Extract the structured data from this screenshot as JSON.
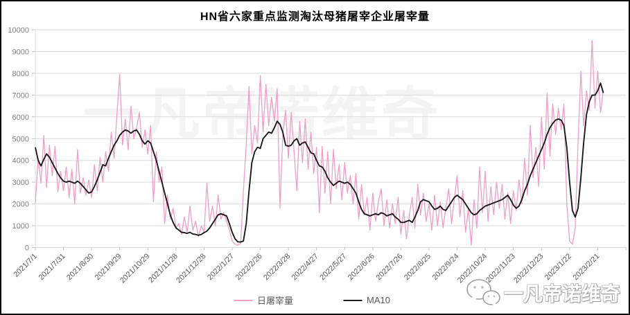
{
  "title": "HN省六家重点监测淘汰母猪屠宰企业屠宰量",
  "watermark_center_text": "一凡帝诺维奇",
  "watermark_bottom_right_text": "一凡帝诺维奇",
  "colors": {
    "daily_series": "#f09ec6",
    "ma10_series": "#1a1a1a",
    "gridline": "#d9d9d9",
    "axis_line": "#c0c0c0",
    "x_label": "#595959",
    "y_label": "#7f7f7f"
  },
  "chart_data": {
    "type": "line",
    "title": "HN省六家重点监测淘汰母猪屠宰企业屠宰量",
    "xlabel": "",
    "ylabel": "",
    "grid": "horizontal",
    "legend_position": "bottom-center",
    "x_axis": {
      "start_date": "2021/7/1",
      "end_date": "2023/2/21",
      "tick_interval_days": 30,
      "tick_labels": [
        "2021/7/1",
        "2021/7/31",
        "2021/8/30",
        "2021/9/29",
        "2021/10/29",
        "2021/11/28",
        "2021/12/28",
        "2022/1/27",
        "2022/2/26",
        "2022/3/28",
        "2022/4/27",
        "2022/5/27",
        "2022/6/26",
        "2022/7/26",
        "2022/8/25",
        "2022/9/24",
        "2022/10/24",
        "2022/11/23",
        "2022/12/23",
        "2023/1/22",
        "2023/2/21"
      ]
    },
    "y_axis": {
      "min": 0,
      "max": 10000,
      "tick_step": 1000,
      "ticks": [
        0,
        1000,
        2000,
        3000,
        4000,
        5000,
        6000,
        7000,
        8000,
        9000,
        10000
      ]
    },
    "sample_start_day": 0,
    "sample_step_days": 3,
    "series": [
      {
        "name": "日屠宰量",
        "color": "#f09ec6",
        "values": [
          2050,
          4100,
          2950,
          5150,
          2750,
          4700,
          3300,
          4650,
          2550,
          3500,
          2600,
          3700,
          2300,
          3600,
          2000,
          4500,
          2500,
          3200,
          2400,
          3100,
          2300,
          3800,
          2600,
          4150,
          3000,
          4400,
          3500,
          5300,
          4100,
          6100,
          7950,
          4700,
          5900,
          4500,
          6500,
          5000,
          5500,
          6200,
          4600,
          5400,
          4300,
          5600,
          2100,
          4400,
          3000,
          3700,
          1100,
          2400,
          1300,
          1800,
          900,
          1100,
          600,
          1400,
          700,
          1900,
          800,
          1200,
          500,
          1000,
          700,
          2950,
          1200,
          1900,
          1000,
          2400,
          1300,
          1600,
          1200,
          800,
          300,
          150,
          100,
          200,
          2600,
          4750,
          7400,
          4300,
          5600,
          4800,
          7900,
          5300,
          7500,
          5600,
          6900,
          5800,
          7300,
          1800,
          5200,
          6300,
          4100,
          6200,
          4400,
          2600,
          5800,
          3900,
          5900,
          3600,
          5300,
          3400,
          4600,
          1600,
          4650,
          2500,
          4400,
          2000,
          4500,
          2700,
          3800,
          2200,
          3900,
          2500,
          3300,
          2000,
          3400,
          1300,
          2900,
          1500,
          2300,
          800,
          2500,
          1200,
          2100,
          2700,
          1000,
          2200,
          900,
          2000,
          1100,
          2300,
          600,
          1700,
          400,
          1500,
          2300,
          900,
          2900,
          1500,
          2500,
          1200,
          2000,
          800,
          2400,
          1000,
          2100,
          900,
          1800,
          2700,
          1100,
          2200,
          3300,
          1400,
          2600,
          700,
          1800,
          100,
          2200,
          900,
          3700,
          1600,
          3500,
          1200,
          2800,
          1500,
          3000,
          1800,
          2900,
          1300,
          2500,
          1100,
          2600,
          1700,
          3100,
          2000,
          4100,
          2400,
          5600,
          3200,
          4600,
          2800,
          6000,
          3600,
          7100,
          4200,
          6600,
          5200,
          6400,
          5400,
          6600,
          2000,
          300,
          150,
          900,
          4800,
          8100,
          5600,
          7200,
          6300,
          9500,
          6400,
          8100,
          6200,
          7200
        ]
      },
      {
        "name": "MA10",
        "color": "#1a1a1a",
        "values": [
          4600,
          4000,
          3750,
          4050,
          4300,
          4150,
          3900,
          3650,
          3400,
          3200,
          3050,
          3000,
          3050,
          3000,
          2950,
          3050,
          2950,
          2800,
          2650,
          2500,
          2550,
          2800,
          3100,
          3450,
          3800,
          3750,
          4100,
          4400,
          4700,
          4900,
          5150,
          5300,
          5400,
          5350,
          5250,
          5350,
          5400,
          5200,
          4900,
          4750,
          4900,
          4800,
          4400,
          4000,
          3500,
          3000,
          2500,
          2000,
          1500,
          1150,
          900,
          800,
          700,
          680,
          650,
          700,
          620,
          600,
          560,
          600,
          680,
          750,
          900,
          1100,
          1300,
          1500,
          1550,
          1500,
          1450,
          1100,
          700,
          400,
          260,
          250,
          300,
          1100,
          2600,
          3900,
          4400,
          4600,
          4550,
          5000,
          5150,
          5300,
          5250,
          5500,
          5800,
          5650,
          5300,
          4700,
          4650,
          4700,
          4900,
          5000,
          4700,
          4800,
          4850,
          4600,
          4350,
          4300,
          4000,
          3750,
          3700,
          3500,
          3200,
          3000,
          2850,
          2950,
          3050,
          3000,
          2950,
          3000,
          2900,
          2700,
          2500,
          2100,
          1750,
          1550,
          1500,
          1450,
          1500,
          1550,
          1500,
          1600,
          1550,
          1450,
          1500,
          1550,
          1400,
          1300,
          1150,
          1150,
          1200,
          1250,
          1150,
          1400,
          1700,
          2100,
          2200,
          2150,
          2100,
          1900,
          1750,
          1800,
          1900,
          1750,
          1700,
          1900,
          2100,
          2300,
          2400,
          2300,
          2200,
          2000,
          1800,
          1600,
          1500,
          1550,
          1700,
          1800,
          1900,
          1950,
          2000,
          2050,
          2100,
          2150,
          2200,
          2300,
          2400,
          2200,
          1950,
          1800,
          1900,
          2200,
          2600,
          2900,
          3300,
          3600,
          3900,
          4200,
          4500,
          4800,
          5200,
          5500,
          5700,
          5850,
          5900,
          5850,
          5600,
          4600,
          3000,
          1700,
          1400,
          1800,
          3200,
          4800,
          6100,
          6700,
          7000,
          7000,
          7200,
          7550,
          7100
        ]
      }
    ]
  }
}
